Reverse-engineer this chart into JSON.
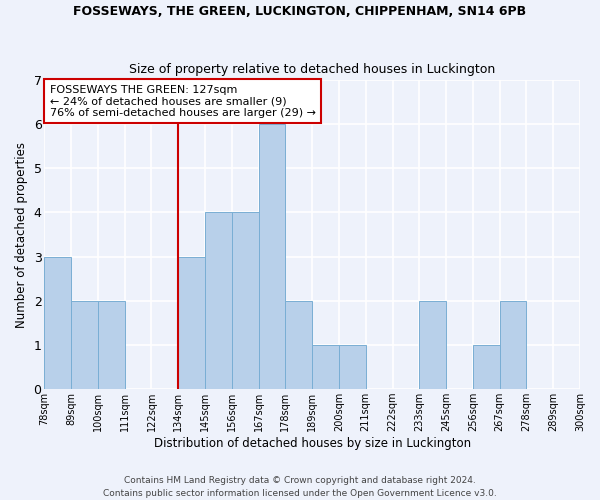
{
  "title1": "FOSSEWAYS, THE GREEN, LUCKINGTON, CHIPPENHAM, SN14 6PB",
  "title2": "Size of property relative to detached houses in Luckington",
  "xlabel": "Distribution of detached houses by size in Luckington",
  "ylabel": "Number of detached properties",
  "footer1": "Contains HM Land Registry data © Crown copyright and database right 2024.",
  "footer2": "Contains public sector information licensed under the Open Government Licence v3.0.",
  "bin_labels": [
    "78sqm",
    "89sqm",
    "100sqm",
    "111sqm",
    "122sqm",
    "134sqm",
    "145sqm",
    "156sqm",
    "167sqm",
    "178sqm",
    "189sqm",
    "200sqm",
    "211sqm",
    "222sqm",
    "233sqm",
    "245sqm",
    "256sqm",
    "267sqm",
    "278sqm",
    "289sqm",
    "300sqm"
  ],
  "values": [
    3,
    2,
    2,
    0,
    0,
    3,
    4,
    4,
    6,
    2,
    1,
    1,
    0,
    0,
    2,
    0,
    1,
    2,
    0,
    0
  ],
  "bar_color": "#b8d0ea",
  "bar_edge_color": "#7aaed4",
  "property_line_bin_index": 5,
  "annotation_text": "FOSSEWAYS THE GREEN: 127sqm\n← 24% of detached houses are smaller (9)\n76% of semi-detached houses are larger (29) →",
  "annotation_box_color": "white",
  "annotation_box_edge_color": "#cc0000",
  "line_color": "#cc0000",
  "ylim": [
    0,
    7
  ],
  "yticks": [
    0,
    1,
    2,
    3,
    4,
    5,
    6,
    7
  ],
  "background_color": "#eef2fb",
  "grid_color": "white",
  "title1_fontsize": 9,
  "title2_fontsize": 9
}
